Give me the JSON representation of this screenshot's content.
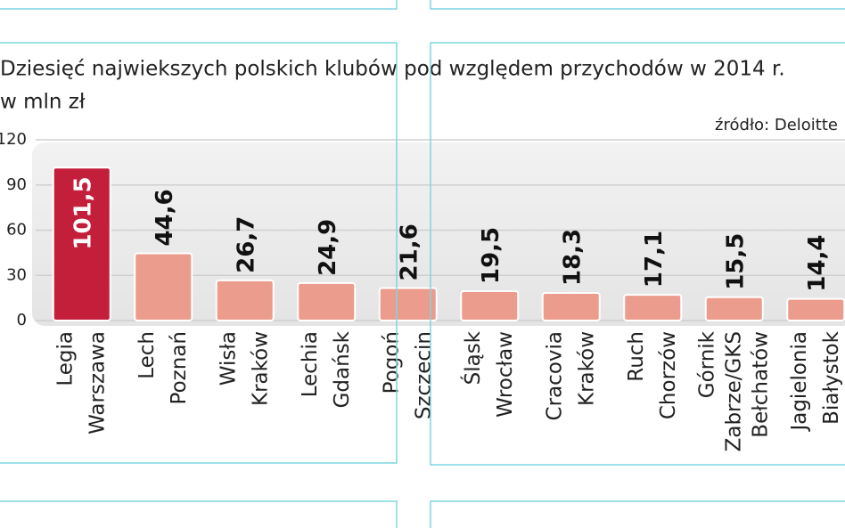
{
  "chart_data": {
    "type": "bar",
    "title": "Dziesięć najwiekszych polskich klubów pod względem przychodów w 2014 r.",
    "subtitle": "w mln zł",
    "source": "źródło: Deloitte",
    "categories": [
      [
        "Legia",
        "Warszawa"
      ],
      [
        "Lech",
        "Poznań"
      ],
      [
        "Wisła",
        "Kraków"
      ],
      [
        "Lechia",
        "Gdańsk"
      ],
      [
        "Pogoń",
        "Szczecin"
      ],
      [
        "Śląsk",
        "Wrocław"
      ],
      [
        "Cracovia",
        "Kraków"
      ],
      [
        "Ruch",
        "Chorzów"
      ],
      [
        "Górnik",
        "Zabrze/GKS",
        "Bełchatów"
      ],
      [
        "Jagielonia",
        "Białystok"
      ]
    ],
    "values": [
      101.5,
      44.6,
      26.7,
      24.9,
      21.6,
      19.5,
      18.3,
      17.1,
      15.5,
      14.4
    ],
    "value_labels": [
      "101,5",
      "44,6",
      "26,7",
      "24,9",
      "21,6",
      "19,5",
      "18,3",
      "17,1",
      "15,5",
      "14,4"
    ],
    "colors": [
      "#c41f3a",
      "#eb9c8c",
      "#eb9c8c",
      "#eb9c8c",
      "#eb9c8c",
      "#eb9c8c",
      "#eb9c8c",
      "#eb9c8c",
      "#eb9c8c",
      "#eb9c8c"
    ],
    "ylim": [
      0,
      120
    ],
    "yticks": [
      0,
      30,
      60,
      90,
      120
    ],
    "grid": true
  }
}
